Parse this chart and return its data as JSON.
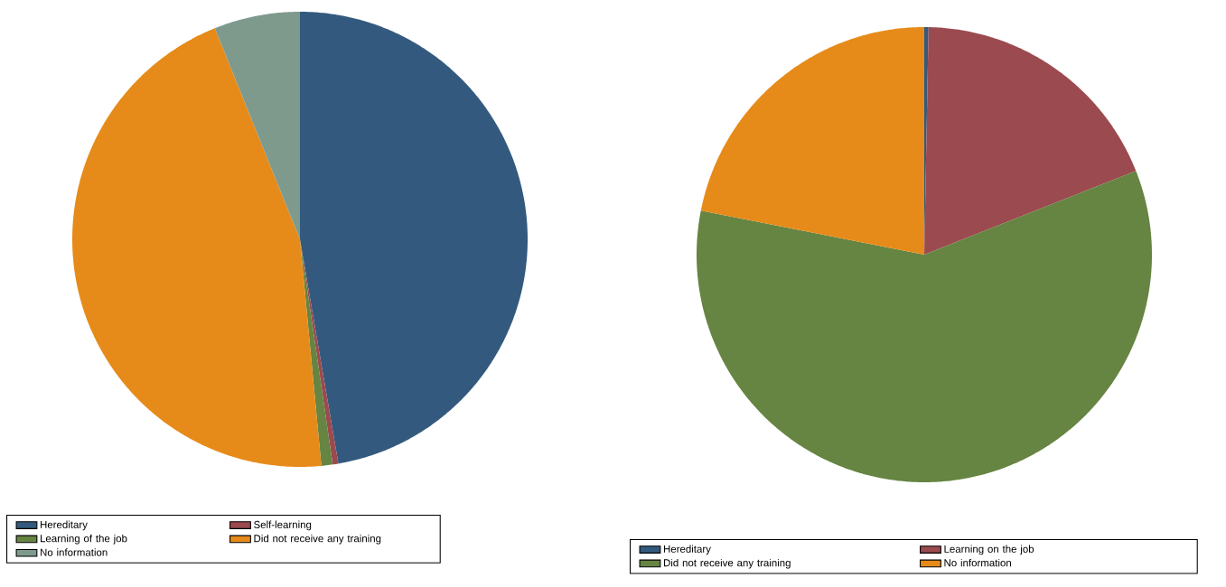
{
  "chart_data": [
    {
      "type": "pie",
      "categories": [
        "Hereditary",
        "Self-learning",
        "Learning of the job",
        "Did not receive any training",
        "No information"
      ],
      "values": [
        47.3,
        0.4,
        0.8,
        45.4,
        6.1
      ],
      "colors": [
        "#335a7e",
        "#9b4a4f",
        "#668442",
        "#e68b19",
        "#7e9a8d"
      ],
      "legend": "bottom"
    },
    {
      "type": "pie",
      "categories": [
        "Hereditary",
        "Learning on the job",
        "Did not receive any training",
        "No information"
      ],
      "values": [
        0.3,
        18.7,
        59.1,
        21.9
      ],
      "colors": [
        "#335a7e",
        "#9b4a4f",
        "#668442",
        "#e68b19"
      ],
      "legend": "bottom"
    }
  ]
}
